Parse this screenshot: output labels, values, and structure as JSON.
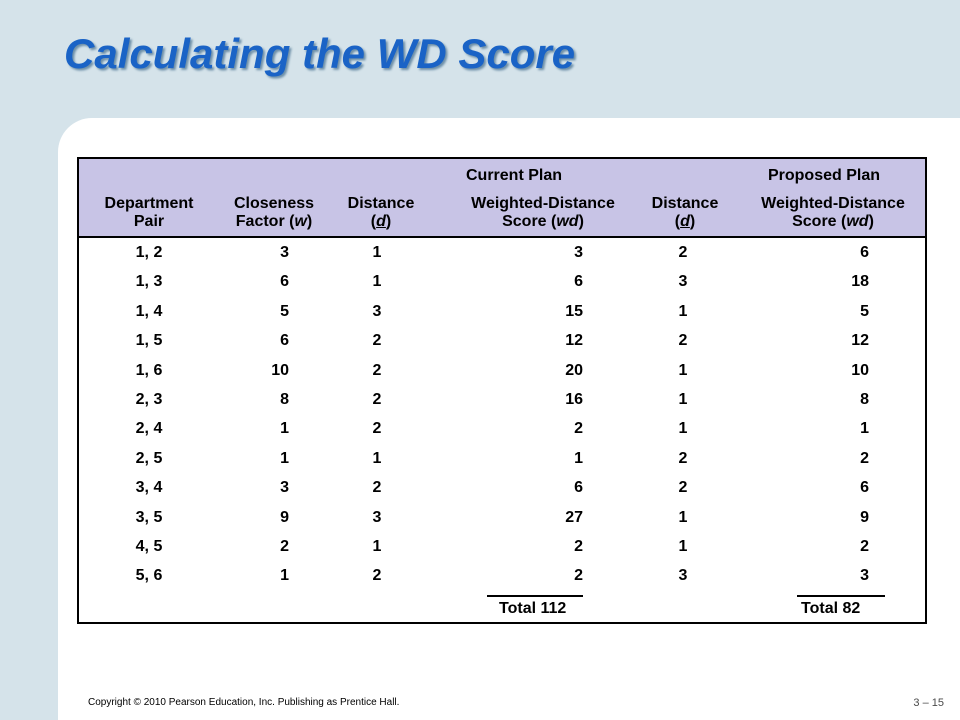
{
  "slide": {
    "title": "Calculating the WD Score",
    "copyright": "Copyright © 2010 Pearson Education, Inc. Publishing as Prentice Hall.",
    "page_number": "3 – 15"
  },
  "table": {
    "group_headers": {
      "current": "Current Plan",
      "proposed": "Proposed Plan"
    },
    "columns": {
      "pair": "Department Pair",
      "closeness": "Closeness Factor (w)",
      "distance_current": "Distance (d)",
      "wd_current": "Weighted-Distance Score (wd)",
      "distance_proposed": "Distance (d)",
      "wd_proposed": "Weighted-Distance Score (wd)"
    },
    "rows": [
      {
        "pair": "1, 2",
        "w": "3",
        "d1": "1",
        "wd1": "3",
        "d2": "2",
        "wd2": "6"
      },
      {
        "pair": "1, 3",
        "w": "6",
        "d1": "1",
        "wd1": "6",
        "d2": "3",
        "wd2": "18"
      },
      {
        "pair": "1, 4",
        "w": "5",
        "d1": "3",
        "wd1": "15",
        "d2": "1",
        "wd2": "5"
      },
      {
        "pair": "1, 5",
        "w": "6",
        "d1": "2",
        "wd1": "12",
        "d2": "2",
        "wd2": "12"
      },
      {
        "pair": "1, 6",
        "w": "10",
        "d1": "2",
        "wd1": "20",
        "d2": "1",
        "wd2": "10"
      },
      {
        "pair": "2, 3",
        "w": "8",
        "d1": "2",
        "wd1": "16",
        "d2": "1",
        "wd2": "8"
      },
      {
        "pair": "2, 4",
        "w": "1",
        "d1": "2",
        "wd1": "2",
        "d2": "1",
        "wd2": "1"
      },
      {
        "pair": "2, 5",
        "w": "1",
        "d1": "1",
        "wd1": "1",
        "d2": "2",
        "wd2": "2"
      },
      {
        "pair": "3, 4",
        "w": "3",
        "d1": "2",
        "wd1": "6",
        "d2": "2",
        "wd2": "6"
      },
      {
        "pair": "3, 5",
        "w": "9",
        "d1": "3",
        "wd1": "27",
        "d2": "1",
        "wd2": "9"
      },
      {
        "pair": "4, 5",
        "w": "2",
        "d1": "1",
        "wd1": "2",
        "d2": "1",
        "wd2": "2"
      },
      {
        "pair": "5, 6",
        "w": "1",
        "d1": "2",
        "wd1": "2",
        "d2": "3",
        "wd2": "3"
      }
    ],
    "totals": {
      "current": "Total 112",
      "proposed": "Total 82"
    }
  }
}
